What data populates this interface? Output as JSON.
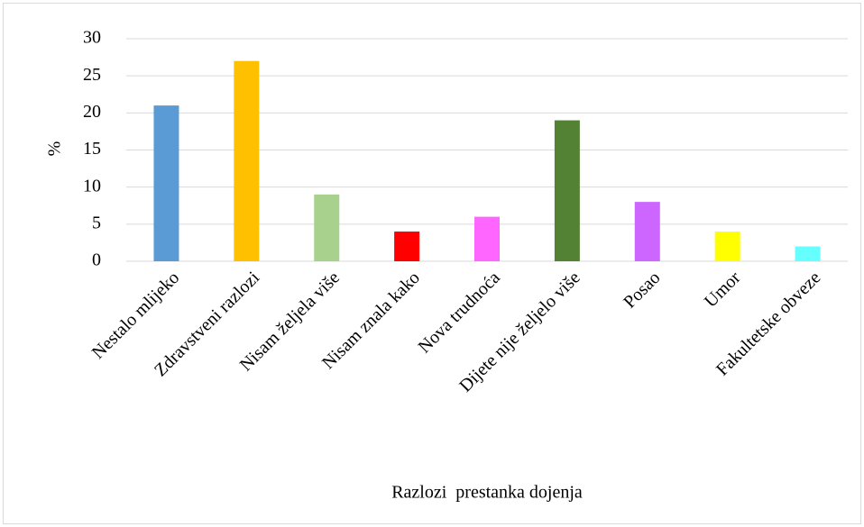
{
  "chart_data": {
    "type": "bar",
    "categories": [
      "Nestalo mlijeko",
      "Zdravstveni razlozi",
      "Nisam željela više",
      "Nisam znala kako",
      "Nova trudnoća",
      "Dijete nije željelo više",
      "Posao",
      "Umor",
      "Fakultetske obveze"
    ],
    "values": [
      21,
      27,
      9,
      4,
      6,
      19,
      8,
      4,
      2
    ],
    "colors": [
      "#5b9bd5",
      "#ffc000",
      "#a9d18e",
      "#ff0000",
      "#ff66ff",
      "#548235",
      "#cc66ff",
      "#ffff00",
      "#66ffff"
    ],
    "y_label": "%",
    "x_label": "Razlozi  prestanka dojenja",
    "ylim": [
      0,
      30
    ],
    "yticks": [
      0,
      5,
      10,
      15,
      20,
      25,
      30
    ],
    "grid": true
  }
}
